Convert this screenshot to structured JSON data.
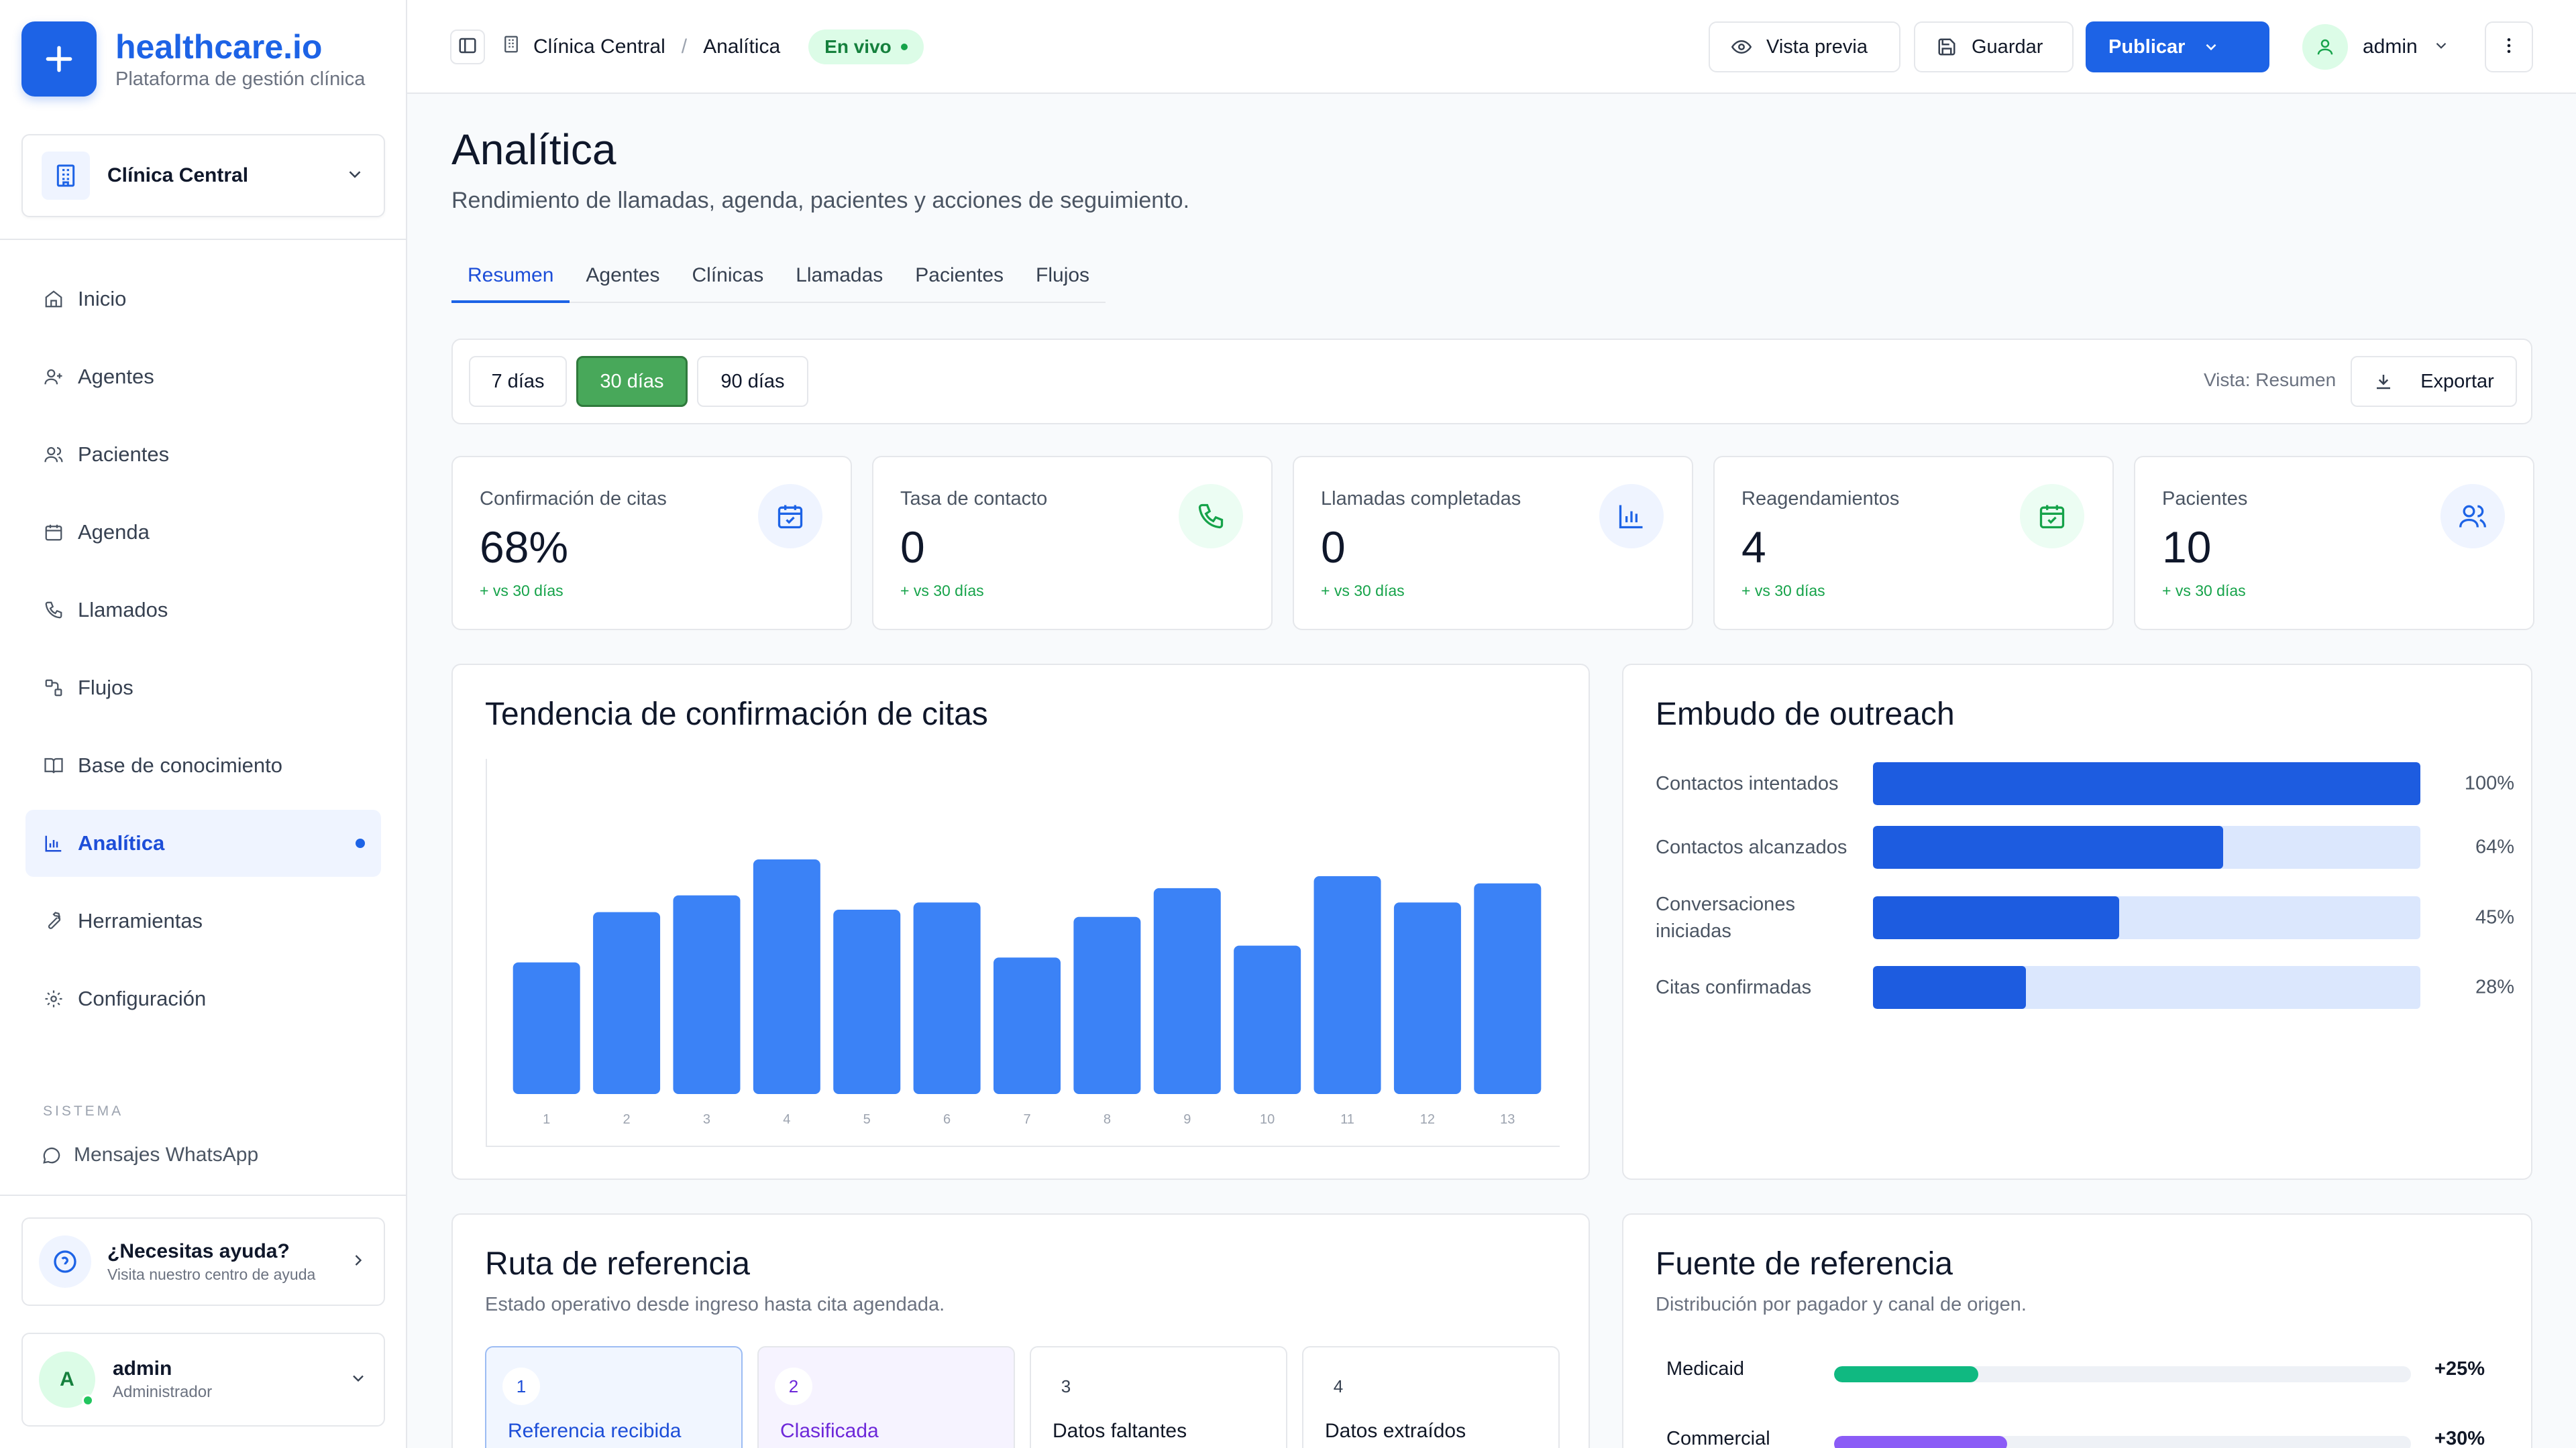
{
  "brand": {
    "name": "healthcare.io",
    "subtitle": "Plataforma de gestión clínica"
  },
  "clinic_selector": {
    "value": "Clínica Central",
    "icon": "building-icon"
  },
  "sidebar": {
    "items": [
      {
        "label": "Inicio",
        "icon": "home-icon"
      },
      {
        "label": "Agentes",
        "icon": "user-plus-icon"
      },
      {
        "label": "Pacientes",
        "icon": "users-icon"
      },
      {
        "label": "Agenda",
        "icon": "calendar-icon"
      },
      {
        "label": "Llamados",
        "icon": "phone-icon"
      },
      {
        "label": "Flujos",
        "icon": "workflow-icon"
      },
      {
        "label": "Base de conocimiento",
        "icon": "book-icon"
      },
      {
        "label": "Analítica",
        "icon": "bar-chart-icon",
        "active": true
      },
      {
        "label": "Herramientas",
        "icon": "wrench-icon"
      },
      {
        "label": "Configuración",
        "icon": "gear-icon"
      }
    ],
    "section_label": "SISTEMA",
    "system_items": [
      {
        "label": "Mensajes WhatsApp",
        "icon": "message-icon"
      }
    ],
    "help": {
      "title": "¿Necesitas ayuda?",
      "subtitle": "Visita nuestro centro de ayuda"
    },
    "user": {
      "initial": "A",
      "name": "admin",
      "role": "Administrador"
    }
  },
  "topbar": {
    "breadcrumb": [
      "Clínica Central",
      "Analítica"
    ],
    "breadcrumb_separator": "/",
    "status_badge": "En vivo",
    "preview_label": "Vista previa",
    "save_label": "Guardar",
    "publish_label": "Publicar",
    "user_name": "admin"
  },
  "page": {
    "title": "Analítica",
    "subtitle": "Rendimiento de llamadas, agenda, pacientes y acciones de seguimiento.",
    "tabs": [
      "Resumen",
      "Agentes",
      "Clínicas",
      "Llamadas",
      "Pacientes",
      "Flujos"
    ],
    "active_tab": "Resumen"
  },
  "filters": {
    "ranges": [
      "7 días",
      "30 días",
      "90 días"
    ],
    "active_range": "30 días",
    "view_label": "Vista: Resumen",
    "export_label": "Exportar"
  },
  "kpis": [
    {
      "label": "Confirmación de citas",
      "value": "68%",
      "delta": "+ vs 30 días",
      "icon": "calendar-check-icon",
      "color": "#1d63e6"
    },
    {
      "label": "Tasa de contacto",
      "value": "0",
      "delta": "+ vs 30 días",
      "icon": "phone-icon",
      "color": "#16a34a"
    },
    {
      "label": "Llamadas completadas",
      "value": "0",
      "delta": "+ vs 30 días",
      "icon": "bar-chart-icon",
      "color": "#1d63e6"
    },
    {
      "label": "Reagendamientos",
      "value": "4",
      "delta": "+ vs 30 días",
      "icon": "calendar-check-icon",
      "color": "#16a34a"
    },
    {
      "label": "Pacientes",
      "value": "10",
      "delta": "+ vs 30 días",
      "icon": "users-icon",
      "color": "#1d63e6"
    }
  ],
  "trend_card": {
    "title": "Tendencia de confirmación de citas"
  },
  "chart_data": {
    "type": "bar",
    "title": "Tendencia de confirmación de citas",
    "categories": [
      "1",
      "2",
      "3",
      "4",
      "5",
      "6",
      "7",
      "8",
      "9",
      "10",
      "11",
      "12",
      "13"
    ],
    "values": [
      55,
      76,
      83,
      98,
      77,
      80,
      57,
      74,
      86,
      62,
      91,
      80,
      88
    ],
    "ylim": [
      0,
      140
    ],
    "grid": false,
    "color": "#3b82f6"
  },
  "funnel": {
    "title": "Embudo de outreach",
    "rows": [
      {
        "label": "Contactos intentados",
        "pct": "100%",
        "value": 100
      },
      {
        "label": "Contactos alcanzados",
        "pct": "64%",
        "value": 64
      },
      {
        "label": "Conversaciones iniciadas",
        "pct": "45%",
        "value": 45
      },
      {
        "label": "Citas confirmadas",
        "pct": "28%",
        "value": 28
      }
    ]
  },
  "referral_route": {
    "title": "Ruta de referencia",
    "subtitle": "Estado operativo desde ingreso hasta cita agendada.",
    "steps": [
      {
        "num": "1",
        "label": "Referencia recibida"
      },
      {
        "num": "2",
        "label": "Clasificada"
      },
      {
        "num": "3",
        "label": "Datos faltantes"
      },
      {
        "num": "4",
        "label": "Datos extraídos"
      }
    ]
  },
  "referral_source": {
    "title": "Fuente de referencia",
    "subtitle": "Distribución por pagador y canal de origen.",
    "rows": [
      {
        "name": "Medicaid",
        "delta": "+25%",
        "fill": 25,
        "color": "#10b981"
      },
      {
        "name": "Commercial",
        "delta": "+30%",
        "fill": 30,
        "color": "#8b5cf6"
      }
    ]
  }
}
